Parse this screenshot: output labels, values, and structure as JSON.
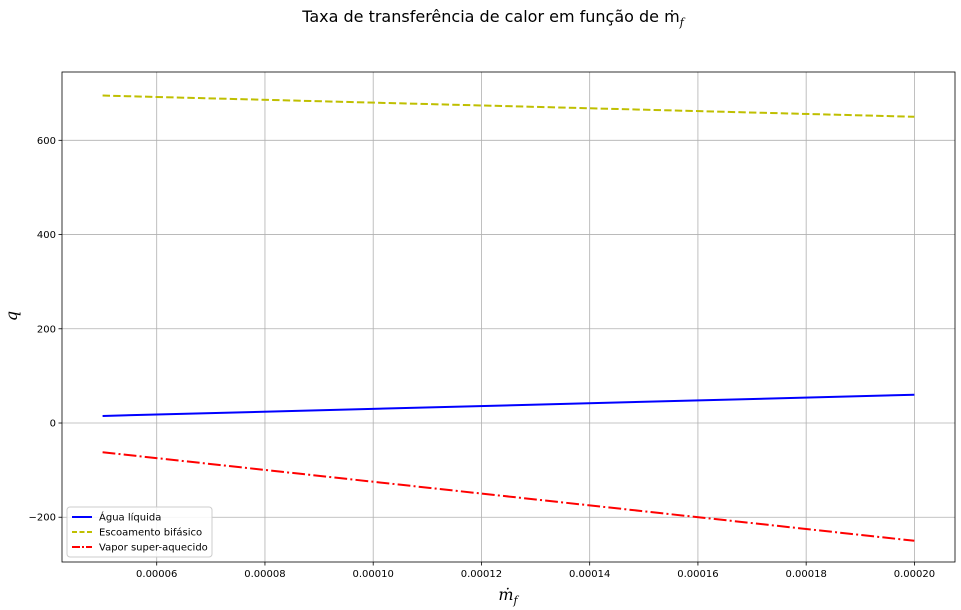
{
  "chart_data": {
    "type": "line",
    "title": "Taxa de transferência de calor em função de ṁ",
    "title_sub": "f",
    "xlabel": "ṁ",
    "xlabel_sub": "f",
    "ylabel": "q",
    "xlim": [
      4.25e-05,
      0.0002075
    ],
    "ylim": [
      -295,
      745
    ],
    "xticks": [
      6e-05,
      8e-05,
      0.0001,
      0.00012,
      0.00014,
      0.00016,
      0.00018,
      0.0002
    ],
    "xtick_labels": [
      "0.00006",
      "0.00008",
      "0.00010",
      "0.00012",
      "0.00014",
      "0.00016",
      "0.00018",
      "0.00020"
    ],
    "yticks": [
      -200,
      0,
      200,
      400,
      600
    ],
    "ytick_labels": [
      "−200",
      "0",
      "200",
      "400",
      "600"
    ],
    "grid": true,
    "legend_position": "bottom-left",
    "series": [
      {
        "name": "Água líquida",
        "color": "#0000ff",
        "dash": "solid",
        "x": [
          5e-05,
          0.0002
        ],
        "y": [
          15,
          60
        ]
      },
      {
        "name": "Escoamento bifásico",
        "color": "#bfbf00",
        "dash": "dashed",
        "x": [
          5e-05,
          0.0002
        ],
        "y": [
          695,
          650
        ]
      },
      {
        "name": "Vapor super-aquecido",
        "color": "#ff0000",
        "dash": "dashdot",
        "x": [
          5e-05,
          0.0002
        ],
        "y": [
          -62,
          -250
        ]
      }
    ]
  }
}
